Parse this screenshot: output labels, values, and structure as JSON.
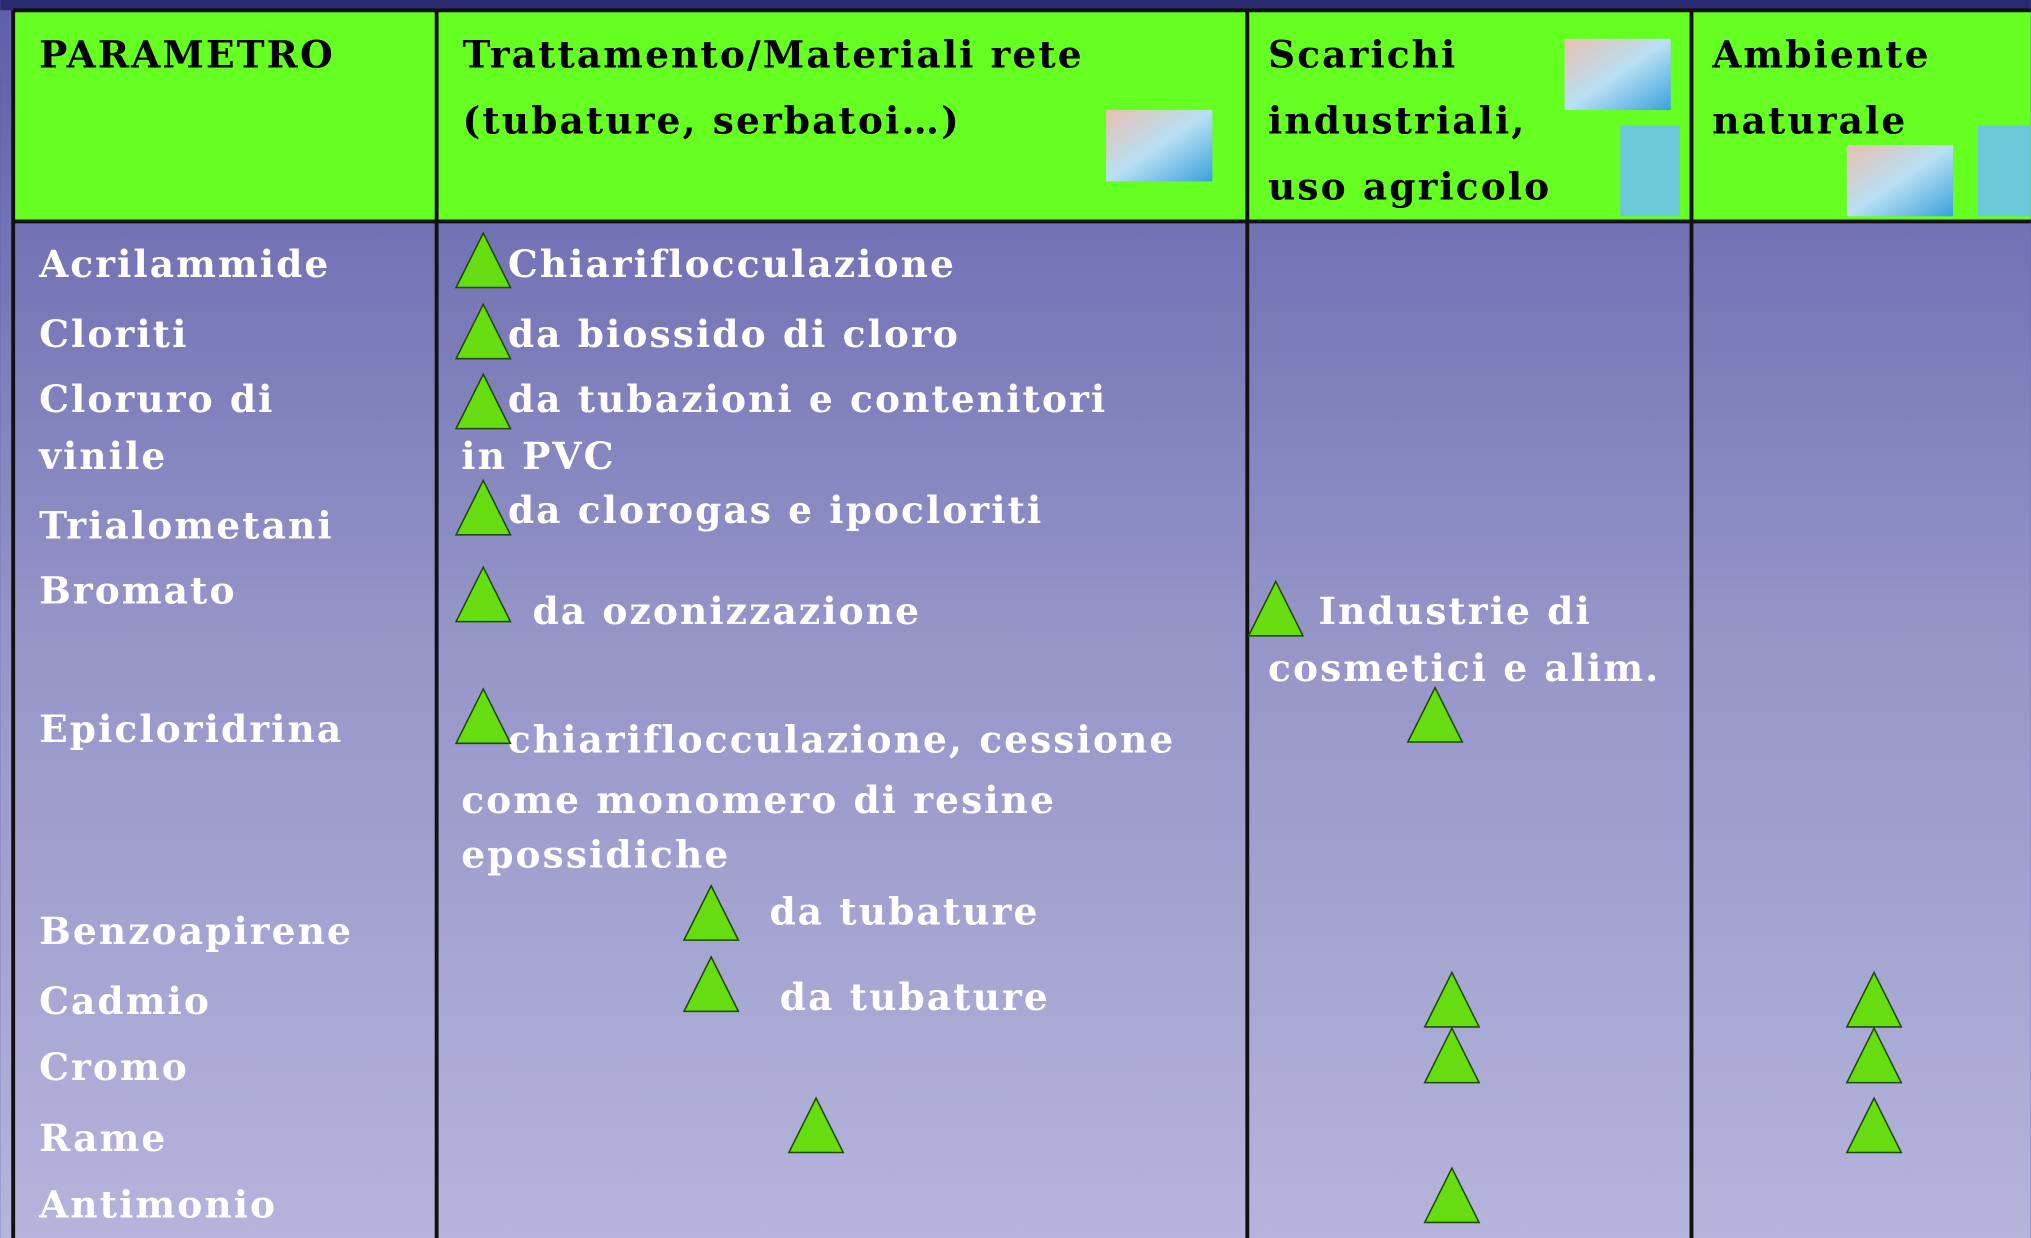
{
  "header": {
    "parametro": "PARAMETRO",
    "trattamento": [
      "Trattamento/Materiali rete",
      "(tubature, serbatoi…)"
    ],
    "scarichi": [
      "Scarichi",
      "industriali,",
      "uso agricolo"
    ],
    "ambiente": [
      "Ambiente",
      "naturale"
    ]
  },
  "parametri": [
    "Acrilammide",
    "Cloriti",
    "Cloruro di",
    "vinile",
    "Trialometani",
    "Bromato",
    "Epicloridrina",
    "Benzoapirene",
    "Cadmio",
    "Cromo",
    "Rame",
    "Antimonio"
  ],
  "trattamento": [
    "Chiariflocculazione",
    "da biossido di cloro",
    "da tubazioni e contenitori",
    "in PVC",
    "da clorogas e ipocloriti",
    "da ozonizzazione",
    "chiariflocculazione, cessione",
    "come monomero di resine",
    "epossidiche",
    "da tubature",
    "da tubature"
  ],
  "scarichi": [
    "Industrie di",
    "cosmetici e alim."
  ]
}
